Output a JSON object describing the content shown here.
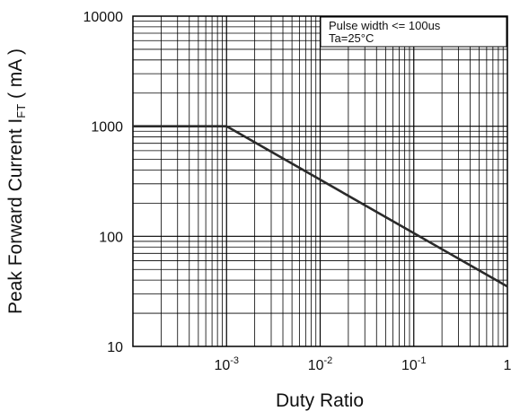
{
  "chart_data": {
    "type": "line",
    "x_scale": "log",
    "y_scale": "log",
    "xlim": [
      0.0001,
      1
    ],
    "ylim": [
      10,
      10000
    ],
    "grid": true,
    "xlabel": "Duty Ratio",
    "ylabel": {
      "main": "Peak Forward Current I",
      "subscript": "FT",
      "unit": " ( mA )"
    },
    "x_ticks": [
      {
        "value": 0.001,
        "base": "10",
        "exp": "-3"
      },
      {
        "value": 0.01,
        "base": "10",
        "exp": "-2"
      },
      {
        "value": 0.1,
        "base": "10",
        "exp": "-1"
      },
      {
        "value": 1,
        "base": "1",
        "exp": ""
      }
    ],
    "y_ticks": [
      {
        "value": 10,
        "label": "10"
      },
      {
        "value": 100,
        "label": "100"
      },
      {
        "value": 1000,
        "label": "1000"
      },
      {
        "value": 10000,
        "label": "10000"
      }
    ],
    "annotation": {
      "lines": [
        "Pulse width <= 100us",
        "Ta=25°C"
      ],
      "placement": "top-right"
    },
    "series": [
      {
        "x": [
          0.0001,
          0.001,
          1
        ],
        "y": [
          1000,
          1000,
          35
        ]
      }
    ],
    "colors": {
      "grid": "#000000",
      "line": "#2a2a2a",
      "frame": "#000000"
    }
  }
}
